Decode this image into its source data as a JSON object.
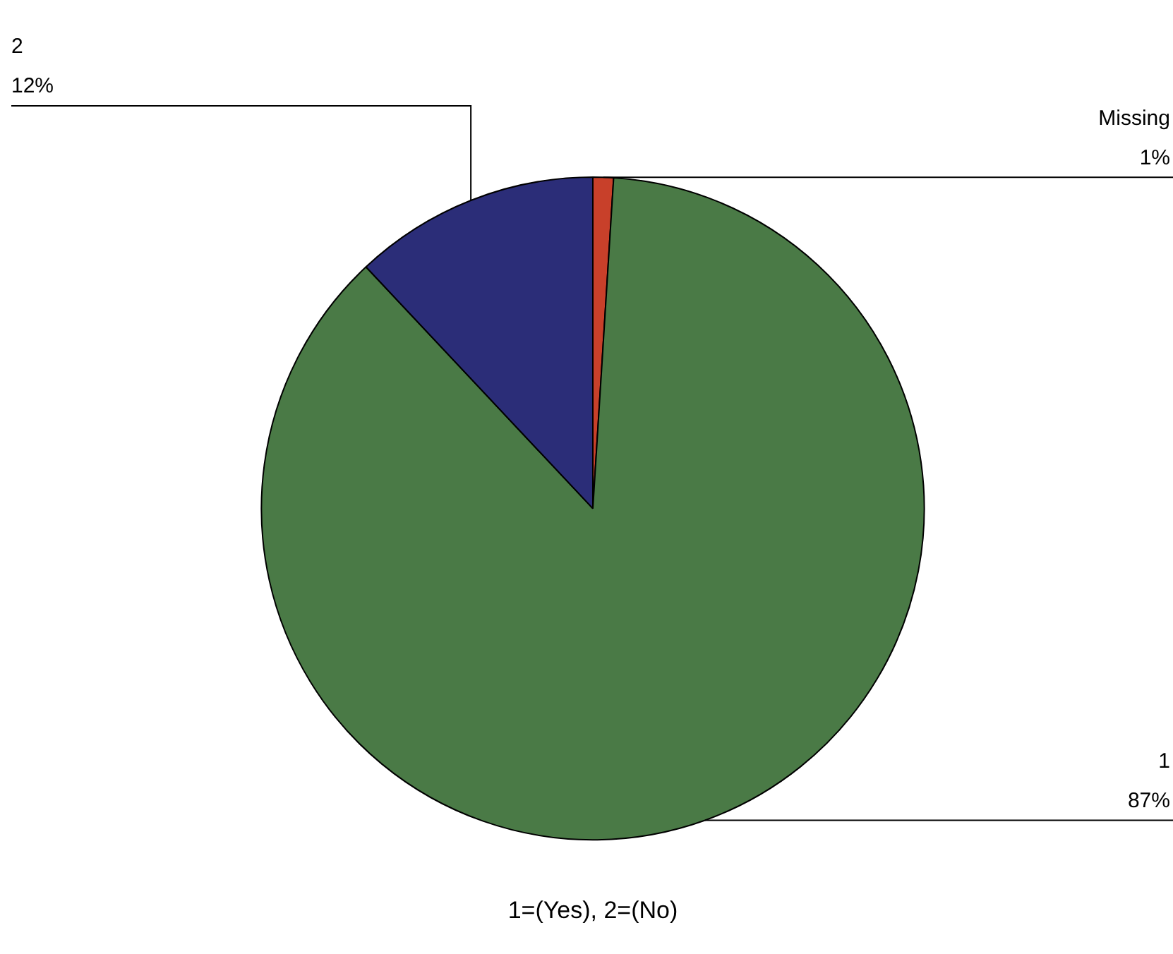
{
  "chart_data": {
    "type": "pie",
    "title": "1=(Yes), 2=(No)",
    "categories": [
      "Missing",
      "1",
      "2"
    ],
    "values": [
      1,
      87,
      12
    ],
    "value_labels": [
      "1%",
      "87%",
      "12%"
    ],
    "colors": [
      "#c8402a",
      "#4a7a46",
      "#2b2d78"
    ],
    "legend": false
  }
}
